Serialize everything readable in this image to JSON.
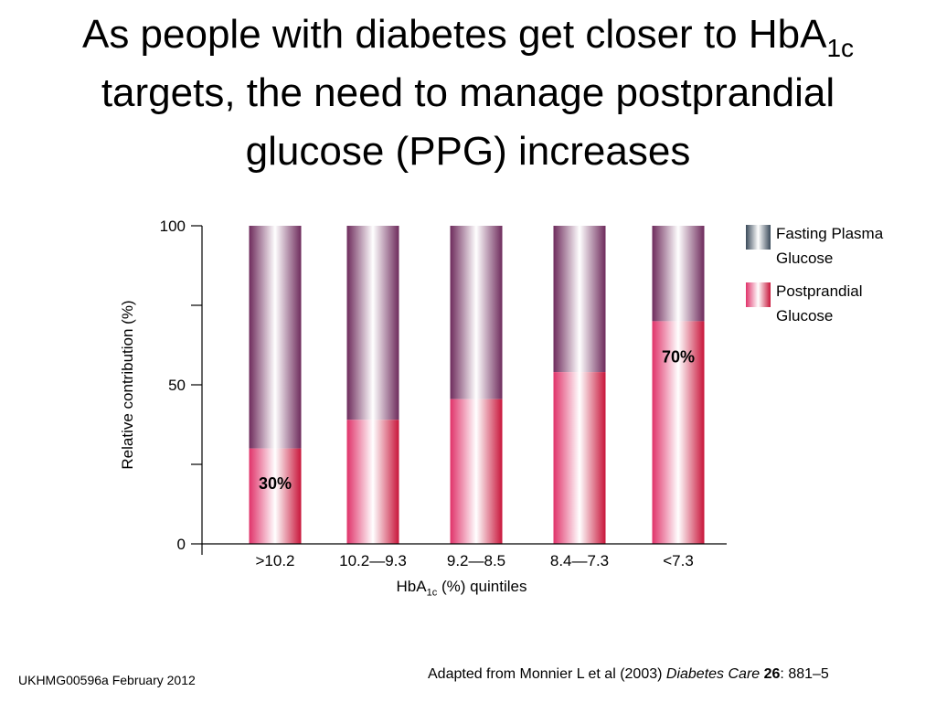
{
  "title": {
    "line1_prefix": "As people with diabetes get closer to HbA",
    "line1_subscript": "1c",
    "line2": "targets, the need to manage postprandial",
    "line3": "glucose (PPG) increases"
  },
  "colors": {
    "fpg_edge": "#6e2b5c",
    "fpg_mid": "#ffffff",
    "ppg_edge": "#c8153a",
    "ppg_mid": "#ffffff",
    "legend_fpg_edge": "#3a4a5a"
  },
  "legend": {
    "fpg_line1": "Fasting Plasma",
    "fpg_line2": "Glucose",
    "ppg_line1": "Postprandial",
    "ppg_line2": "Glucose"
  },
  "chart_data": {
    "type": "bar",
    "stacked": true,
    "categories": [
      ">10.2",
      "10.2—9.3",
      "9.2—8.5",
      "8.4—7.3",
      "<7.3"
    ],
    "series": [
      {
        "name": "Postprandial Glucose",
        "values": [
          30,
          39,
          45.5,
          54,
          70
        ]
      },
      {
        "name": "Fasting Plasma Glucose",
        "values": [
          70,
          61,
          54.5,
          46,
          30
        ]
      }
    ],
    "data_labels": [
      "30%",
      "",
      "",
      "",
      "70%"
    ],
    "ylabel": "Relative contribution (%)",
    "xlabel_prefix": "HbA",
    "xlabel_subscript": "1c",
    "xlabel_suffix": " (%) quintiles",
    "ylim": [
      0,
      100
    ],
    "yticks": [
      0,
      25,
      50,
      75,
      100
    ],
    "ytick_labels": [
      "0",
      "",
      "50",
      "",
      "100"
    ],
    "legend_position": "right",
    "grid": false
  },
  "footer": {
    "code": "UKHMG00596a February 2012",
    "citation_prefix": "Adapted from Monnier L et al (2003) ",
    "citation_journal": "Diabetes Care",
    "citation_volume": "26",
    "citation_pages": ": 881–5"
  }
}
